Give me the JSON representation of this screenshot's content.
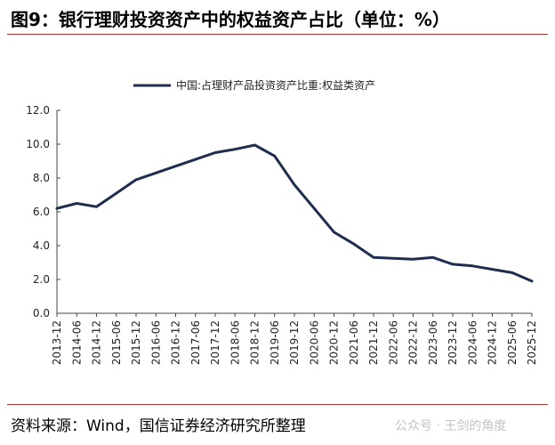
{
  "header": {
    "title": "图9：银行理财投资资产中的权益资产占比（单位：%）"
  },
  "footer": {
    "source": "资料来源：Wind，国信证券经济研究所整理",
    "watermark": "公众号 · 王剑的角度"
  },
  "colors": {
    "accent_rule": "#b5332e",
    "series_line": "#1f2d4e",
    "axis": "#444444"
  },
  "chart_data": {
    "type": "line",
    "title": "图9：银行理财投资资产中的权益资产占比（单位：%）",
    "xlabel": "",
    "ylabel": "",
    "ylim": [
      0,
      12
    ],
    "yticks": [
      "0.0",
      "2.0",
      "4.0",
      "6.0",
      "8.0",
      "10.0",
      "12.0"
    ],
    "xticks": [
      "2013-12",
      "2014-06",
      "2014-12",
      "2015-06",
      "2015-12",
      "2016-06",
      "2016-12",
      "2017-06",
      "2017-12",
      "2018-06",
      "2018-12",
      "2019-06",
      "2019-12",
      "2020-06",
      "2020-12",
      "2021-06",
      "2021-12",
      "2022-06",
      "2022-12",
      "2023-06",
      "2023-12",
      "2024-06",
      "2024-12",
      "2025-06",
      "2025-12"
    ],
    "grid": false,
    "legend_position": "top",
    "series": [
      {
        "name": "中国:占理财产品投资资产比重:权益类资产",
        "x": [
          "2013-12",
          "2014-06",
          "2014-12",
          "2015-06",
          "2015-12",
          "2016-06",
          "2016-12",
          "2017-06",
          "2017-12",
          "2018-06",
          "2018-12",
          "2019-06",
          "2019-12",
          "2020-06",
          "2020-12",
          "2021-06",
          "2021-12",
          "2022-06",
          "2022-12",
          "2023-06",
          "2023-12",
          "2024-06",
          "2024-12",
          "2025-06",
          "2025-12"
        ],
        "values": [
          6.2,
          6.5,
          6.3,
          7.1,
          7.9,
          8.3,
          8.7,
          9.1,
          9.5,
          9.7,
          9.95,
          9.3,
          7.6,
          6.2,
          4.8,
          4.1,
          3.3,
          3.25,
          3.2,
          3.3,
          2.9,
          2.8,
          2.6,
          2.4,
          1.9
        ]
      }
    ]
  }
}
